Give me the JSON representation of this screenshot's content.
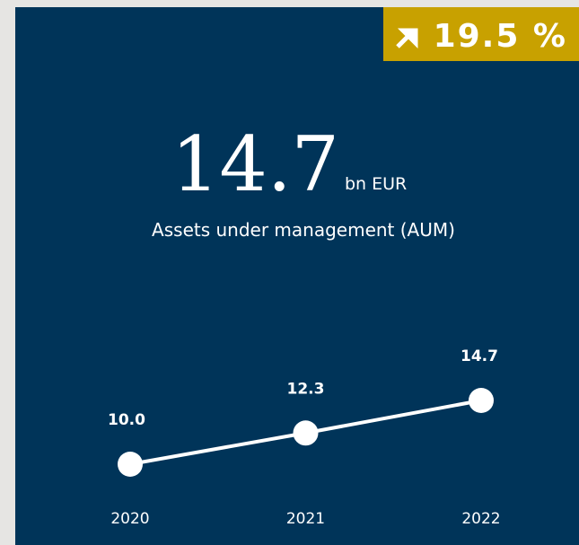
{
  "chart_data": {
    "type": "line",
    "badge": {
      "value": 19.5,
      "label": "19.5 %"
    },
    "title": "14.7",
    "unit": "bn EUR",
    "subtitle": "Assets under management (AUM)",
    "categories": [
      "2020",
      "2021",
      "2022"
    ],
    "values": [
      10,
      12.3,
      14.7
    ],
    "value_labels": [
      "10.0",
      "12.3",
      "14.7"
    ],
    "color": "#ffffff"
  }
}
